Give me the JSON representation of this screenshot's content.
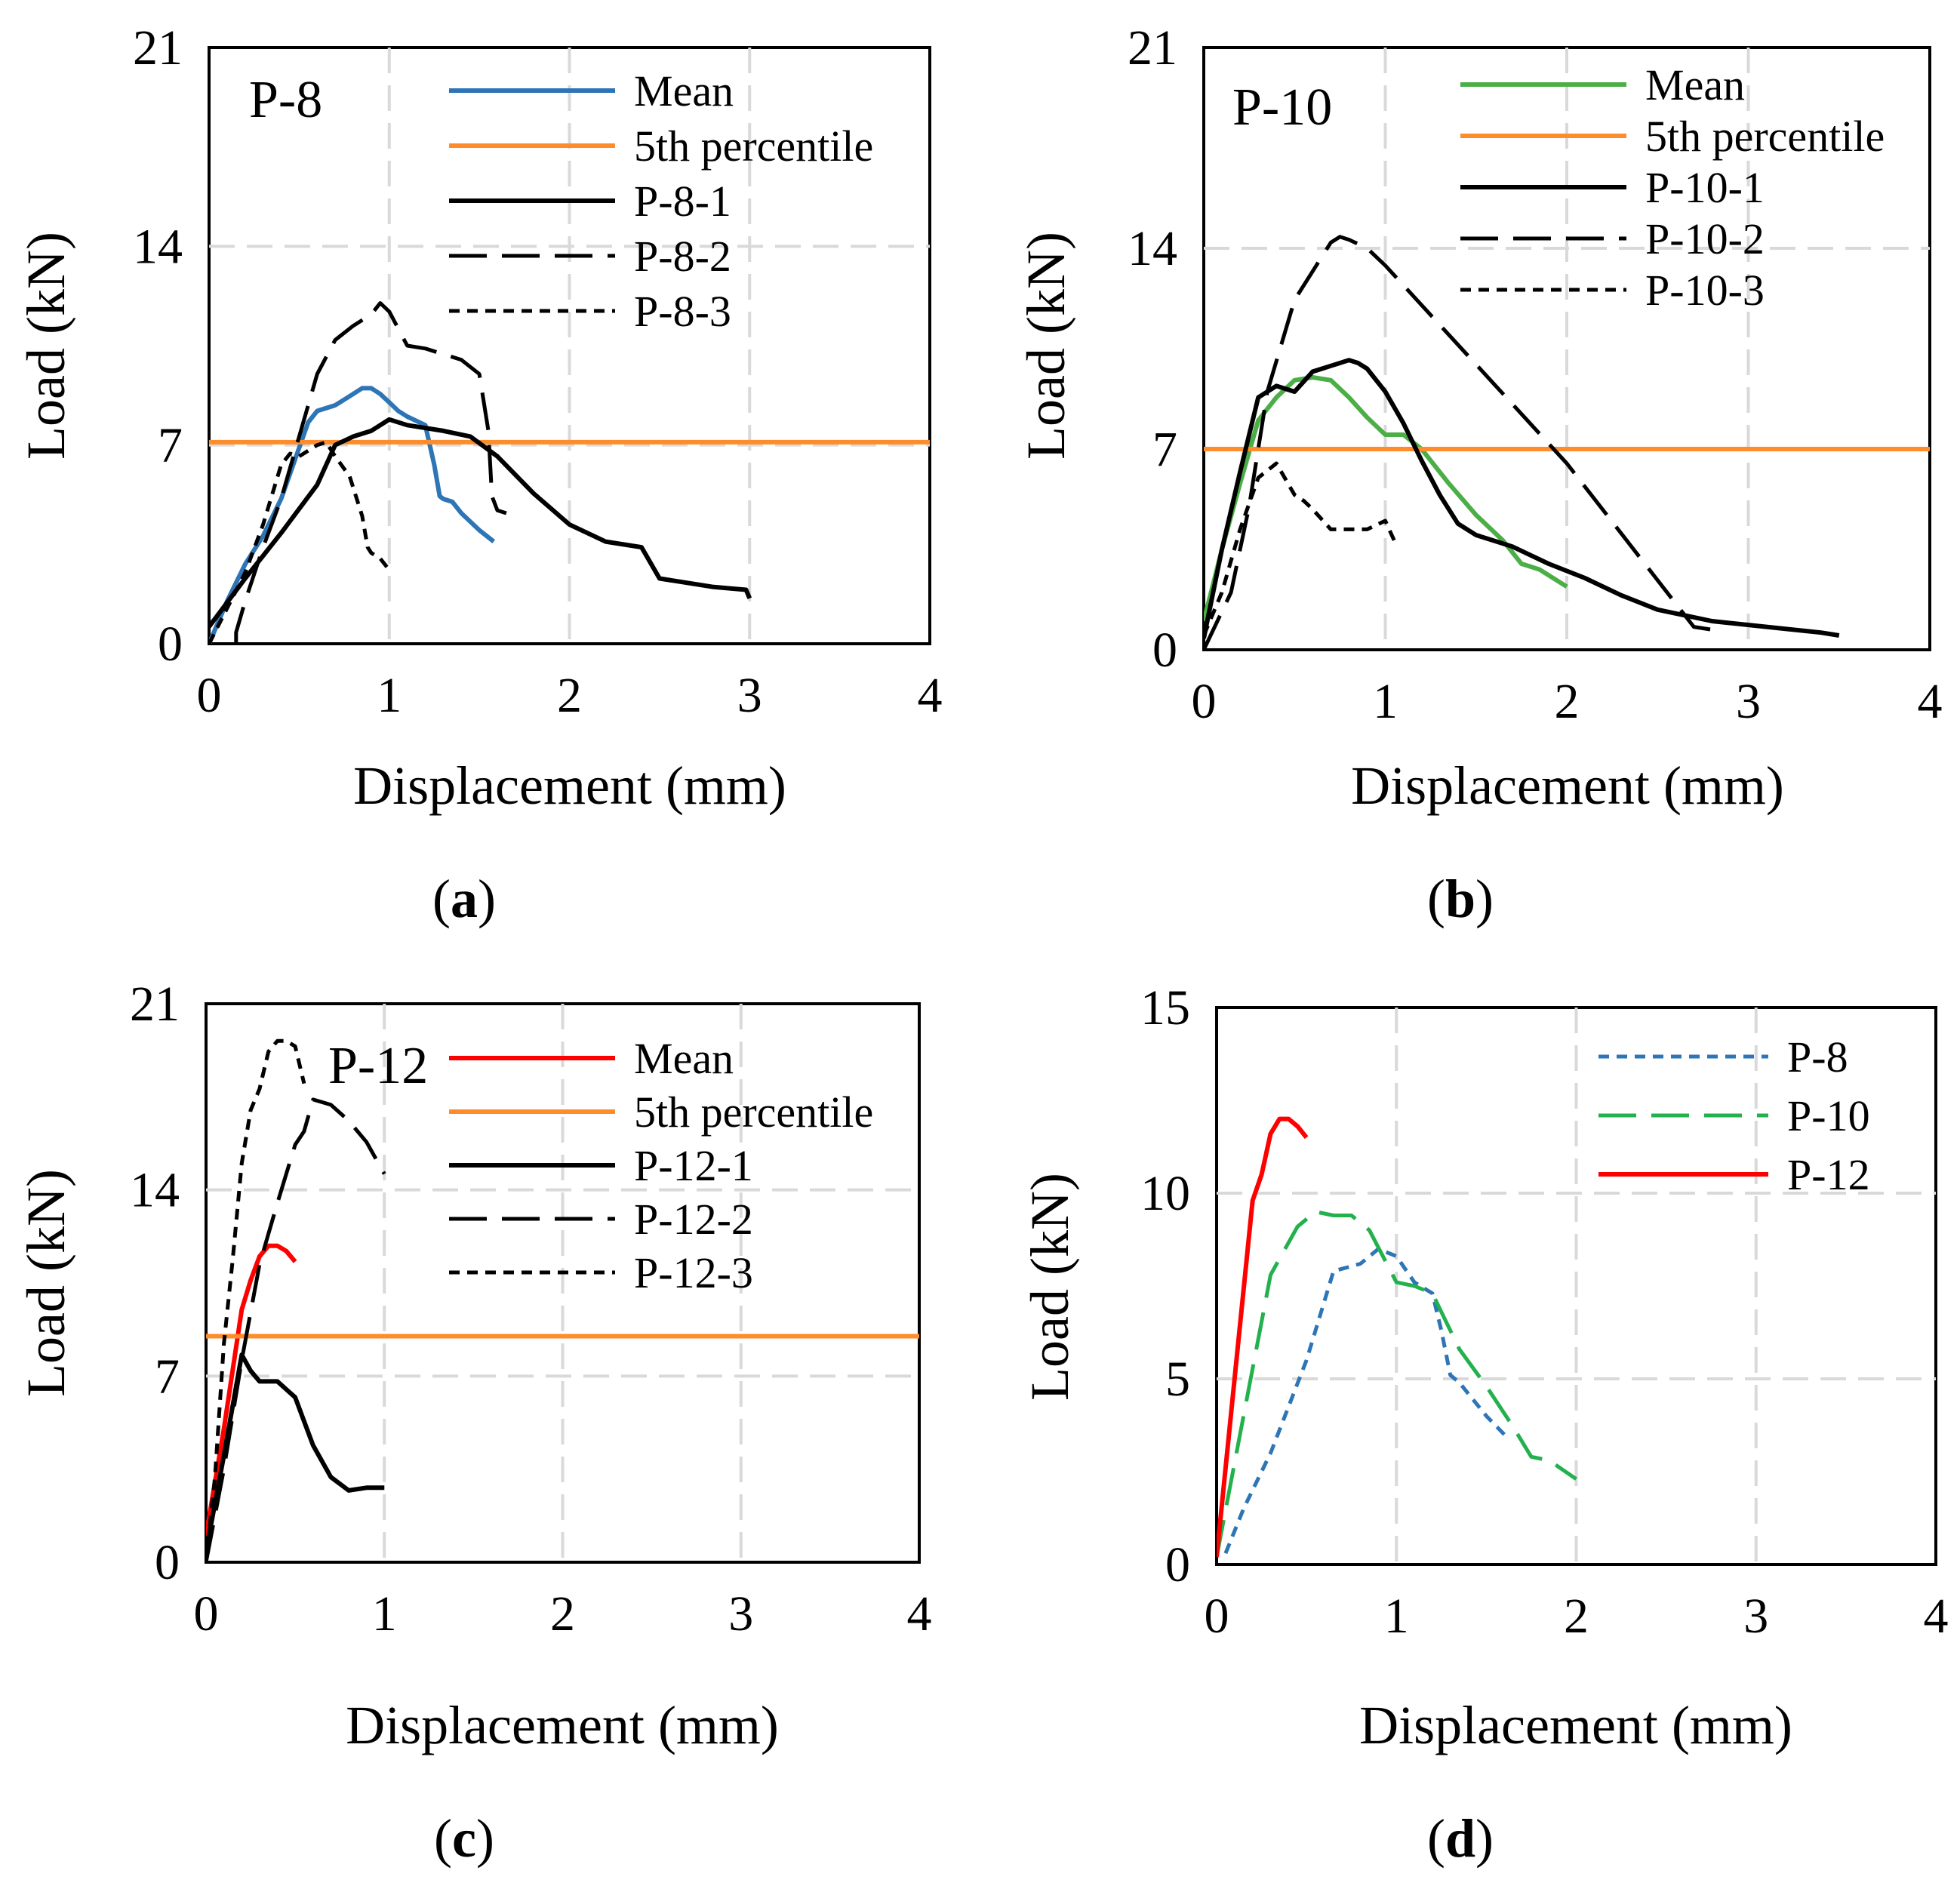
{
  "figure": {
    "captions": [
      "(a)",
      "(b)",
      "(c)",
      "(d)"
    ],
    "caption_letters": [
      "a",
      "b",
      "c",
      "d"
    ],
    "colors": {
      "blue": "#2e75b6",
      "green": "#4cae47",
      "red": "#ff0000",
      "orange": "#ff8c2a",
      "black": "#000000",
      "grid": "#d9d9d9",
      "d_blue": "#2e75b6",
      "d_green": "#22b14c"
    }
  },
  "chart_data": [
    {
      "id": "a",
      "type": "line",
      "title": "P-8",
      "xlabel": "Displacement (mm)",
      "ylabel": "Load (kN)",
      "xlim": [
        0,
        4
      ],
      "ylim": [
        0,
        21
      ],
      "xticks": [
        "0",
        "1",
        "2",
        "3",
        "4"
      ],
      "yticks": [
        "0",
        "7",
        "14",
        "21"
      ],
      "grid": true,
      "legend_position": "top-right",
      "series": [
        {
          "name": "Mean",
          "color": "#2e75b6",
          "dash": "solid",
          "x": [
            0,
            0.1,
            0.2,
            0.3,
            0.4,
            0.5,
            0.55,
            0.6,
            0.7,
            0.75,
            0.8,
            0.85,
            0.9,
            0.95,
            1.0,
            1.05,
            1.1,
            1.2,
            1.25,
            1.28,
            1.3,
            1.35,
            1.4,
            1.5,
            1.58
          ],
          "y": [
            0,
            1.5,
            2.8,
            3.8,
            5.1,
            6.9,
            7.8,
            8.2,
            8.4,
            8.6,
            8.8,
            9.0,
            9.0,
            8.8,
            8.5,
            8.2,
            8.0,
            7.7,
            6.3,
            5.2,
            5.1,
            5.0,
            4.6,
            4.0,
            3.6
          ]
        },
        {
          "name": "5th percentile",
          "color": "#ff8c2a",
          "dash": "solid",
          "x": [
            0,
            4
          ],
          "y": [
            7.1,
            7.1
          ]
        },
        {
          "name": "P-8-1",
          "color": "#000000",
          "dash": "solid",
          "x": [
            0,
            0.2,
            0.4,
            0.6,
            0.7,
            0.8,
            0.9,
            1.0,
            1.1,
            1.3,
            1.45,
            1.6,
            1.8,
            2.0,
            2.2,
            2.4,
            2.5,
            2.8,
            2.98,
            3.0
          ],
          "y": [
            0.6,
            2.3,
            3.9,
            5.6,
            7.0,
            7.3,
            7.5,
            7.9,
            7.7,
            7.5,
            7.3,
            6.6,
            5.3,
            4.2,
            3.6,
            3.4,
            2.3,
            2.0,
            1.9,
            1.6
          ]
        },
        {
          "name": "P-8-2",
          "color": "#000000",
          "dash": "long",
          "x": [
            0.15,
            0.15,
            0.2,
            0.3,
            0.4,
            0.5,
            0.6,
            0.7,
            0.8,
            0.9,
            0.95,
            1.0,
            1.1,
            1.2,
            1.3,
            1.4,
            1.5,
            1.55,
            1.57,
            1.6,
            1.65
          ],
          "y": [
            0,
            0.4,
            1.5,
            3.4,
            5.1,
            7.3,
            9.5,
            10.7,
            11.2,
            11.6,
            12.0,
            11.7,
            10.5,
            10.4,
            10.2,
            10.0,
            9.5,
            7.5,
            5.2,
            4.7,
            4.6
          ]
        },
        {
          "name": "P-8-3",
          "color": "#000000",
          "dash": "short",
          "x": [
            0,
            0.2,
            0.3,
            0.4,
            0.45,
            0.5,
            0.6,
            0.65,
            0.7,
            0.78,
            0.85,
            0.88,
            0.9,
            0.95,
            1.0
          ],
          "y": [
            0,
            2.5,
            4.2,
            6.3,
            6.7,
            6.6,
            7.0,
            7.1,
            6.6,
            5.9,
            4.5,
            3.4,
            3.2,
            3.0,
            2.6
          ]
        }
      ]
    },
    {
      "id": "b",
      "type": "line",
      "title": "P-10",
      "xlabel": "Displacement (mm)",
      "ylabel": "Load (kN)",
      "xlim": [
        0,
        4
      ],
      "ylim": [
        0,
        21
      ],
      "xticks": [
        "0",
        "1",
        "2",
        "3",
        "4"
      ],
      "yticks": [
        "0",
        "7",
        "14",
        "21"
      ],
      "grid": true,
      "legend_position": "top-right",
      "series": [
        {
          "name": "Mean",
          "color": "#4cae47",
          "dash": "solid",
          "x": [
            0,
            0.1,
            0.2,
            0.3,
            0.4,
            0.5,
            0.6,
            0.7,
            0.8,
            0.9,
            1.0,
            1.1,
            1.2,
            1.35,
            1.5,
            1.65,
            1.75,
            1.85,
            2.0
          ],
          "y": [
            1,
            3.5,
            5.8,
            8.0,
            8.8,
            9.4,
            9.5,
            9.4,
            8.8,
            8.1,
            7.5,
            7.5,
            7.0,
            5.8,
            4.7,
            3.8,
            3.0,
            2.8,
            2.2
          ]
        },
        {
          "name": "5th percentile",
          "color": "#ff8c2a",
          "dash": "solid",
          "x": [
            0,
            4
          ],
          "y": [
            7.0,
            7.0
          ]
        },
        {
          "name": "P-10-1",
          "color": "#000000",
          "dash": "solid",
          "x": [
            0,
            0.1,
            0.2,
            0.3,
            0.4,
            0.5,
            0.6,
            0.65,
            0.7,
            0.8,
            0.85,
            0.9,
            1.0,
            1.1,
            1.2,
            1.3,
            1.4,
            1.5,
            1.7,
            1.9,
            2.1,
            2.3,
            2.5,
            2.8,
            3.1,
            3.4,
            3.5
          ],
          "y": [
            0.4,
            3.5,
            6.2,
            8.8,
            9.2,
            9.0,
            9.7,
            9.8,
            9.9,
            10.1,
            10.0,
            9.8,
            9.0,
            7.9,
            6.6,
            5.4,
            4.4,
            4.0,
            3.6,
            3.0,
            2.5,
            1.9,
            1.4,
            1.0,
            0.8,
            0.6,
            0.5
          ]
        },
        {
          "name": "P-10-2",
          "color": "#000000",
          "dash": "long",
          "x": [
            0,
            0.15,
            0.25,
            0.35,
            0.5,
            0.6,
            0.7,
            0.75,
            0.8,
            0.9,
            1.0,
            2.0,
            2.7,
            2.8
          ],
          "y": [
            0,
            2.0,
            5.0,
            9.0,
            12.2,
            13.2,
            14.2,
            14.4,
            14.3,
            14.0,
            13.4,
            6.5,
            0.8,
            0.7
          ]
        },
        {
          "name": "P-10-3",
          "color": "#000000",
          "dash": "short",
          "x": [
            0,
            0.1,
            0.2,
            0.3,
            0.4,
            0.5,
            0.55,
            0.6,
            0.7,
            0.8,
            0.9,
            1.0,
            1.05
          ],
          "y": [
            0.5,
            2.0,
            4.2,
            6.0,
            6.5,
            5.4,
            5.2,
            4.9,
            4.2,
            4.2,
            4.2,
            4.5,
            3.8
          ]
        }
      ]
    },
    {
      "id": "c",
      "type": "line",
      "title": "P-12",
      "xlabel": "Displacement (mm)",
      "ylabel": "Load (kN)",
      "xlim": [
        0,
        4
      ],
      "ylim": [
        0,
        21
      ],
      "xticks": [
        "0",
        "1",
        "2",
        "3",
        "4"
      ],
      "yticks": [
        "0",
        "7",
        "14",
        "21"
      ],
      "grid": true,
      "legend_position": "top-right",
      "series": [
        {
          "name": "Mean",
          "color": "#ff0000",
          "dash": "solid",
          "x": [
            0,
            0.1,
            0.2,
            0.25,
            0.3,
            0.35,
            0.4,
            0.45,
            0.5
          ],
          "y": [
            1.0,
            5.0,
            9.5,
            10.6,
            11.5,
            11.9,
            11.9,
            11.7,
            11.3
          ]
        },
        {
          "name": "5th percentile",
          "color": "#ff8c2a",
          "dash": "solid",
          "x": [
            0,
            4
          ],
          "y": [
            8.5,
            8.5
          ]
        },
        {
          "name": "P-12-1",
          "color": "#000000",
          "dash": "solid",
          "x": [
            0,
            0.1,
            0.2,
            0.25,
            0.3,
            0.4,
            0.5,
            0.55,
            0.6,
            0.7,
            0.8,
            0.9,
            1.0
          ],
          "y": [
            0.4,
            4.0,
            7.8,
            7.2,
            6.8,
            6.8,
            6.2,
            5.3,
            4.4,
            3.2,
            2.7,
            2.8,
            2.8
          ]
        },
        {
          "name": "P-12-2",
          "color": "#000000",
          "dash": "long",
          "x": [
            0,
            0.1,
            0.2,
            0.3,
            0.4,
            0.5,
            0.55,
            0.6,
            0.65,
            0.7,
            0.8,
            0.9,
            1.0
          ],
          "y": [
            0,
            3.5,
            7.6,
            11.2,
            13.5,
            15.7,
            16.2,
            17.4,
            17.3,
            17.2,
            16.6,
            15.8,
            14.6
          ]
        },
        {
          "name": "P-12-3",
          "color": "#000000",
          "dash": "short",
          "x": [
            0,
            0.05,
            0.1,
            0.15,
            0.2,
            0.25,
            0.3,
            0.35,
            0.4,
            0.45,
            0.5,
            0.55
          ],
          "y": [
            0,
            3.2,
            8.2,
            11.4,
            15.0,
            17.0,
            17.8,
            19.2,
            19.6,
            19.6,
            19.4,
            18.0
          ]
        }
      ]
    },
    {
      "id": "d",
      "type": "line",
      "title": "",
      "xlabel": "Displacement (mm)",
      "ylabel": "Load (kN)",
      "xlim": [
        0,
        4
      ],
      "ylim": [
        0,
        15
      ],
      "xticks": [
        "0",
        "1",
        "2",
        "3",
        "4"
      ],
      "yticks": [
        "0",
        "5",
        "10",
        "15"
      ],
      "grid": true,
      "legend_position": "top-right",
      "series": [
        {
          "name": "P-8",
          "color": "#2e75b6",
          "dash": "short",
          "x": [
            0.05,
            0.15,
            0.3,
            0.5,
            0.65,
            0.8,
            0.9,
            1.0,
            1.1,
            1.2,
            1.25,
            1.3,
            1.35,
            1.5,
            1.6
          ],
          "y": [
            0.3,
            1.5,
            3.0,
            5.5,
            7.9,
            8.1,
            8.5,
            8.3,
            7.6,
            7.3,
            6.3,
            5.1,
            4.9,
            4.0,
            3.5
          ]
        },
        {
          "name": "P-10",
          "color": "#22b14c",
          "dash": "long",
          "x": [
            0,
            0.15,
            0.3,
            0.45,
            0.55,
            0.65,
            0.75,
            0.85,
            1.0,
            1.1,
            1.2,
            1.35,
            1.5,
            1.65,
            1.75,
            1.85,
            2.0
          ],
          "y": [
            0.2,
            4.0,
            7.8,
            9.1,
            9.5,
            9.4,
            9.4,
            9.0,
            7.6,
            7.5,
            7.3,
            5.8,
            4.8,
            3.7,
            2.9,
            2.8,
            2.3
          ]
        },
        {
          "name": "P-12",
          "color": "#ff0000",
          "dash": "solid",
          "x": [
            0,
            0.1,
            0.2,
            0.25,
            0.3,
            0.35,
            0.4,
            0.45,
            0.5
          ],
          "y": [
            0.2,
            5.0,
            9.8,
            10.5,
            11.6,
            12.0,
            12.0,
            11.8,
            11.5
          ]
        }
      ]
    }
  ]
}
